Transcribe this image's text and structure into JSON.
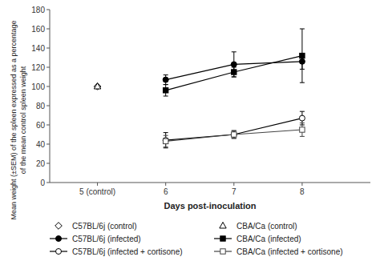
{
  "chart_data": {
    "type": "line",
    "xlabel": "Days post-inoculation",
    "ylabel": "Mean weight (±SEM) of the spleen expressed as a percentage\nof the mean control spleen weight",
    "xlim": [
      4.3,
      9.0
    ],
    "ylim": [
      0,
      180
    ],
    "xticks": [
      {
        "value": 5,
        "label": "5 (control)"
      },
      6,
      7,
      8
    ],
    "yticks": [
      0,
      20,
      40,
      60,
      80,
      100,
      120,
      140,
      160,
      180
    ],
    "grid": false,
    "legend": "bottom",
    "series": [
      {
        "name": "C57BL/6j (control)",
        "color": "#000000",
        "marker": "diamond-open",
        "line_style": "none",
        "x": [
          5
        ],
        "values": [
          100
        ]
      },
      {
        "name": "C57BL/6j (infected)",
        "color": "#000000",
        "marker": "circle",
        "line_style": "solid",
        "x": [
          6,
          7,
          8
        ],
        "values": [
          107,
          123,
          126
        ],
        "errors": [
          5,
          13,
          8
        ]
      },
      {
        "name": "C57BL/6j (infected + cortisone)",
        "color": "#000000",
        "marker": "circle-open",
        "line_style": "solid",
        "x": [
          6,
          7,
          8
        ],
        "values": [
          44,
          50,
          67
        ],
        "errors": [
          8,
          4,
          7
        ]
      },
      {
        "name": "CBA/Ca (control)",
        "color": "#000000",
        "marker": "triangle-open",
        "line_style": "none",
        "x": [
          5
        ],
        "values": [
          100
        ]
      },
      {
        "name": "CBA/Ca (infected)",
        "color": "#000000",
        "marker": "square",
        "line_style": "solid",
        "x": [
          6,
          7,
          8
        ],
        "values": [
          96,
          115,
          132
        ],
        "errors": [
          6,
          5,
          28
        ]
      },
      {
        "name": "CBA/Ca (infected + cortisone)",
        "color": "#444444",
        "marker": "square-open",
        "line_style": "solid",
        "x": [
          6,
          7,
          8
        ],
        "values": [
          43,
          50,
          55
        ],
        "errors": [
          6,
          4,
          7
        ]
      }
    ]
  }
}
